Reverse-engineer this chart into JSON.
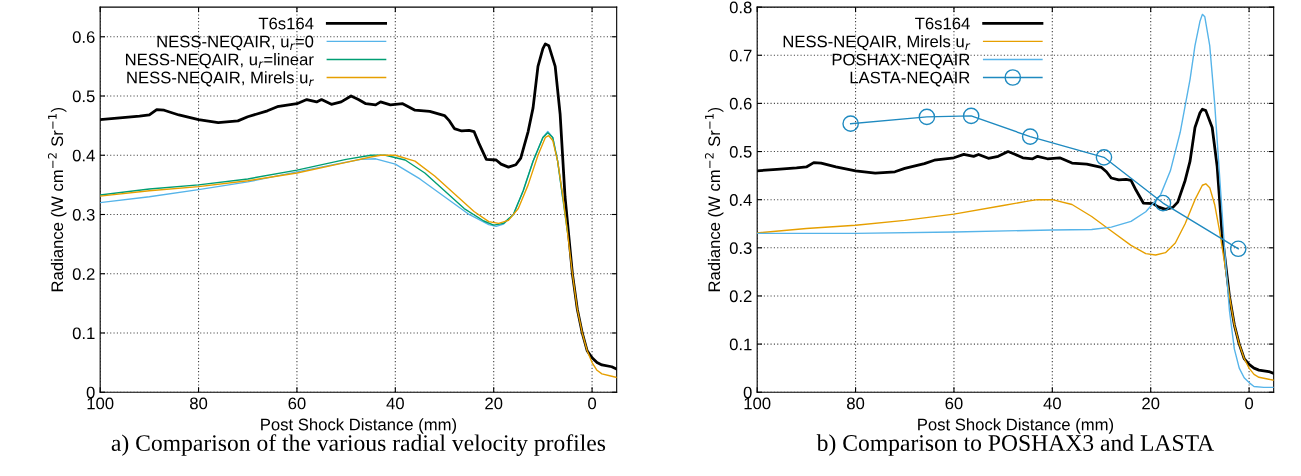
{
  "chart_data": [
    {
      "type": "line",
      "xlabel": "Post Shock Distance (mm)",
      "ylabel": "Radiance (W cm$^{−2}$ Sr$^{−1}$)",
      "annotations": [
        "a) Comparison of the various radial velocity profiles"
      ],
      "xlim": [
        100,
        -5
      ],
      "ylim": [
        0,
        0.65
      ],
      "xticks": [
        100,
        80,
        60,
        40,
        20,
        0
      ],
      "yticks": [
        0,
        0.1,
        0.2,
        0.3,
        0.4,
        0.5,
        0.6
      ],
      "grid": true,
      "legend": "top",
      "marker": "none",
      "line_style": "solid",
      "series": [
        {
          "name": "T6s164",
          "color": "#000000",
          "x": [
            100,
            96,
            92,
            90,
            88.5,
            87,
            84,
            80,
            76,
            72,
            70,
            66,
            64,
            60,
            58,
            56,
            55,
            53,
            51,
            49,
            47.5,
            46,
            44,
            43,
            41,
            38.5,
            36,
            33,
            30,
            29,
            28,
            26.5,
            25,
            24,
            23,
            21.5,
            19.5,
            18.5,
            17,
            15.5,
            14.5,
            13,
            12,
            11,
            10,
            9.5,
            8.8,
            7.5,
            6.5,
            5.5,
            4,
            3,
            2,
            1,
            0,
            -1,
            -2,
            -4,
            -5
          ],
          "values": [
            0.46,
            0.463,
            0.466,
            0.468,
            0.477,
            0.476,
            0.468,
            0.46,
            0.455,
            0.458,
            0.465,
            0.475,
            0.482,
            0.487,
            0.494,
            0.49,
            0.494,
            0.486,
            0.49,
            0.5,
            0.494,
            0.487,
            0.485,
            0.49,
            0.485,
            0.487,
            0.476,
            0.474,
            0.467,
            0.458,
            0.445,
            0.441,
            0.442,
            0.44,
            0.42,
            0.393,
            0.392,
            0.385,
            0.38,
            0.384,
            0.395,
            0.44,
            0.48,
            0.55,
            0.58,
            0.588,
            0.585,
            0.55,
            0.47,
            0.33,
            0.2,
            0.14,
            0.1,
            0.07,
            0.058,
            0.05,
            0.046,
            0.043,
            0.039
          ]
        },
        {
          "name": "NESS-NEQAIR, u$_{r}$=0",
          "color": "#56b4e9",
          "x": [
            100,
            90,
            80,
            70,
            60,
            52,
            47,
            44,
            40,
            35,
            30,
            25,
            21,
            19.5,
            18,
            16,
            14,
            12,
            10,
            9,
            8,
            7,
            6
          ],
          "values": [
            0.32,
            0.33,
            0.342,
            0.355,
            0.372,
            0.385,
            0.393,
            0.394,
            0.385,
            0.36,
            0.33,
            0.3,
            0.283,
            0.28,
            0.284,
            0.3,
            0.34,
            0.39,
            0.43,
            0.44,
            0.43,
            0.39,
            0.33
          ]
        },
        {
          "name": "NESS-NEQAIR, u$_{r}$=linear",
          "color": "#009e73",
          "x": [
            100,
            90,
            80,
            70,
            60,
            50,
            45,
            42,
            38,
            34,
            30,
            26,
            22,
            20,
            18,
            16,
            14,
            12,
            10,
            9,
            8,
            7,
            6,
            5
          ],
          "values": [
            0.333,
            0.343,
            0.35,
            0.36,
            0.375,
            0.393,
            0.4,
            0.4,
            0.392,
            0.37,
            0.34,
            0.31,
            0.289,
            0.282,
            0.285,
            0.3,
            0.34,
            0.39,
            0.43,
            0.438,
            0.43,
            0.39,
            0.33,
            0.27
          ]
        },
        {
          "name": "NESS-NEQAIR, Mirels u$_{r}$",
          "color": "#e69f00",
          "x": [
            100,
            90,
            80,
            70,
            60,
            50,
            45,
            43,
            40,
            36,
            32,
            28,
            24,
            21,
            19,
            17,
            15,
            13,
            11,
            9.5,
            8.8,
            8,
            7,
            6,
            5,
            4,
            3,
            2,
            1,
            0,
            -1,
            -2,
            -4,
            -5
          ],
          "values": [
            0.331,
            0.34,
            0.347,
            0.357,
            0.37,
            0.388,
            0.397,
            0.4,
            0.4,
            0.39,
            0.365,
            0.335,
            0.305,
            0.288,
            0.285,
            0.29,
            0.31,
            0.35,
            0.4,
            0.43,
            0.433,
            0.425,
            0.39,
            0.335,
            0.27,
            0.2,
            0.14,
            0.1,
            0.07,
            0.05,
            0.037,
            0.031,
            0.027,
            0.025
          ]
        }
      ]
    },
    {
      "type": "line",
      "xlabel": "Post Shock Distance (mm)",
      "ylabel": "Radiance (W cm$^{−2}$ Sr$^{−1}$)",
      "annotations": [
        "b) Comparison to POSHAX3 and LASTA"
      ],
      "xlim": [
        100,
        -5
      ],
      "ylim": [
        0,
        0.8
      ],
      "xticks": [
        100,
        80,
        60,
        40,
        20,
        0
      ],
      "yticks": [
        0,
        0.1,
        0.2,
        0.3,
        0.4,
        0.5,
        0.6,
        0.7,
        0.8
      ],
      "grid": true,
      "legend": "top",
      "marker": "none",
      "line_style": "solid",
      "series": [
        {
          "name": "T6s164",
          "color": "#000000",
          "x": [
            100,
            96,
            92,
            90,
            88.5,
            87,
            84,
            80,
            76,
            72,
            70,
            66,
            64,
            60,
            58,
            56,
            55,
            53,
            51,
            49,
            47.5,
            46,
            44,
            43,
            41,
            38.5,
            36,
            33,
            30,
            29,
            28,
            26.5,
            25,
            24,
            23,
            21.5,
            19.5,
            18.5,
            17,
            15.5,
            14.5,
            13,
            12,
            11,
            10,
            9.5,
            8.8,
            7.5,
            6.5,
            5.5,
            4,
            3,
            2,
            1,
            0,
            -1,
            -2,
            -4,
            -5
          ],
          "values": [
            0.46,
            0.463,
            0.466,
            0.468,
            0.477,
            0.476,
            0.468,
            0.46,
            0.455,
            0.458,
            0.465,
            0.475,
            0.482,
            0.487,
            0.494,
            0.49,
            0.494,
            0.486,
            0.49,
            0.5,
            0.494,
            0.487,
            0.485,
            0.49,
            0.485,
            0.487,
            0.476,
            0.474,
            0.467,
            0.458,
            0.445,
            0.441,
            0.442,
            0.44,
            0.42,
            0.393,
            0.392,
            0.385,
            0.38,
            0.384,
            0.395,
            0.44,
            0.48,
            0.55,
            0.58,
            0.588,
            0.585,
            0.55,
            0.47,
            0.33,
            0.2,
            0.14,
            0.1,
            0.07,
            0.058,
            0.05,
            0.046,
            0.043,
            0.039
          ]
        },
        {
          "name": "NESS-NEQAIR, Mirels u$_{r}$",
          "color": "#e69f00",
          "x": [
            100,
            90,
            80,
            70,
            60,
            50,
            45,
            43,
            40,
            36,
            32,
            28,
            24,
            21,
            19,
            17,
            15,
            13,
            11,
            9.5,
            8.8,
            8,
            7,
            6,
            5,
            4,
            3,
            2,
            1,
            0,
            -1,
            -2,
            -4,
            -5
          ],
          "values": [
            0.331,
            0.34,
            0.347,
            0.357,
            0.37,
            0.388,
            0.397,
            0.4,
            0.4,
            0.39,
            0.365,
            0.335,
            0.305,
            0.288,
            0.285,
            0.29,
            0.31,
            0.35,
            0.4,
            0.43,
            0.433,
            0.425,
            0.39,
            0.335,
            0.27,
            0.2,
            0.14,
            0.1,
            0.07,
            0.05,
            0.037,
            0.031,
            0.027,
            0.025
          ]
        },
        {
          "name": "POSHAX-NEQAIR",
          "color": "#56b4e9",
          "x": [
            100,
            80,
            60,
            40,
            32,
            28,
            24,
            21,
            18,
            16,
            14,
            12,
            11,
            10,
            9.5,
            9,
            8,
            7,
            6,
            5,
            4,
            3,
            2,
            1,
            0,
            -1,
            -3,
            -5
          ],
          "values": [
            0.33,
            0.33,
            0.333,
            0.337,
            0.338,
            0.343,
            0.355,
            0.375,
            0.41,
            0.46,
            0.54,
            0.65,
            0.72,
            0.77,
            0.785,
            0.78,
            0.72,
            0.6,
            0.45,
            0.3,
            0.17,
            0.09,
            0.05,
            0.03,
            0.02,
            0.012,
            0.01,
            0.01
          ]
        },
        {
          "name": "LASTA-NEQAIR",
          "color": "#1f8ac0",
          "marker": "circle",
          "x": [
            81,
            65.5,
            56.5,
            44.5,
            29.5,
            17.5,
            2.2
          ],
          "values": [
            0.558,
            0.572,
            0.574,
            0.531,
            0.488,
            0.393,
            0.298
          ]
        }
      ]
    }
  ]
}
